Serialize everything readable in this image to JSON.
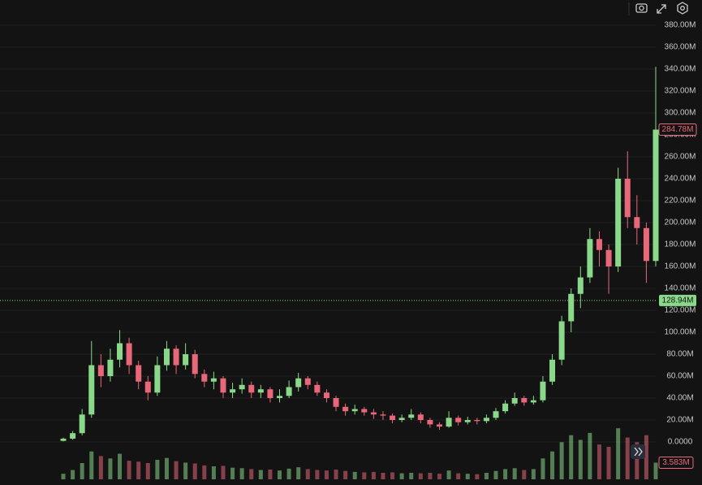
{
  "chart_data": {
    "type": "candlestick",
    "open": [
      1,
      3,
      8,
      25,
      70,
      60,
      75,
      90,
      70,
      55,
      45,
      70,
      85,
      70,
      80,
      62,
      55,
      58,
      45,
      48,
      52,
      45,
      48,
      40,
      42,
      50,
      58,
      52,
      45,
      40,
      32,
      28,
      30,
      27,
      25,
      24,
      20,
      22,
      25,
      20,
      16,
      14,
      22,
      18,
      20,
      19,
      22,
      28,
      35,
      40,
      36,
      38,
      55,
      75,
      110,
      135,
      150,
      185,
      175,
      160,
      240,
      205,
      195,
      165
    ],
    "high": [
      4,
      10,
      30,
      92,
      80,
      85,
      102,
      95,
      74,
      60,
      78,
      92,
      88,
      90,
      84,
      66,
      64,
      60,
      54,
      58,
      55,
      52,
      50,
      48,
      56,
      63,
      60,
      55,
      48,
      42,
      35,
      34,
      32,
      30,
      28,
      26,
      25,
      30,
      27,
      22,
      18,
      28,
      24,
      23,
      22,
      25,
      31,
      38,
      45,
      42,
      42,
      60,
      80,
      115,
      140,
      160,
      195,
      192,
      180,
      250,
      265,
      225,
      200,
      342
    ],
    "low": [
      0.5,
      2,
      6,
      22,
      50,
      55,
      68,
      62,
      48,
      38,
      42,
      65,
      62,
      66,
      58,
      50,
      48,
      40,
      40,
      44,
      40,
      40,
      36,
      36,
      40,
      46,
      48,
      42,
      36,
      28,
      24,
      25,
      24,
      21,
      20,
      17,
      18,
      20,
      17,
      13,
      11,
      13,
      15,
      16,
      16,
      17,
      20,
      26,
      33,
      33,
      34,
      36,
      52,
      70,
      100,
      122,
      145,
      160,
      135,
      155,
      195,
      180,
      145,
      160
    ],
    "close": [
      3,
      8,
      25,
      70,
      60,
      75,
      90,
      70,
      55,
      45,
      70,
      85,
      70,
      80,
      62,
      55,
      58,
      45,
      48,
      52,
      45,
      48,
      40,
      42,
      50,
      58,
      52,
      45,
      40,
      32,
      28,
      30,
      27,
      25,
      24,
      20,
      22,
      25,
      20,
      16,
      14,
      22,
      18,
      20,
      19,
      22,
      28,
      35,
      40,
      36,
      38,
      55,
      75,
      110,
      135,
      150,
      185,
      175,
      160,
      240,
      205,
      195,
      165,
      284.78
    ],
    "volume": [
      1.2,
      2,
      3.5,
      6,
      5,
      4.5,
      5.5,
      4,
      3.8,
      3.5,
      4.2,
      4.6,
      3.9,
      3.6,
      3.4,
      3,
      2.8,
      2.9,
      2.5,
      2.4,
      2.2,
      2,
      2.1,
      1.9,
      2.3,
      2.6,
      2.2,
      2,
      1.9,
      2.1,
      1.8,
      1.6,
      1.5,
      1.6,
      1.4,
      1.5,
      1.3,
      1.4,
      1.3,
      1.4,
      1.2,
      1.9,
      1.3,
      1.2,
      1.1,
      1.4,
      1.8,
      2.2,
      2.4,
      2,
      2.2,
      4.5,
      6,
      8,
      9.5,
      8.5,
      10,
      7.5,
      7,
      11,
      9,
      8,
      9.5,
      3.583
    ],
    "close_label": "284.78M",
    "volume_label": "3.583M",
    "volume_ylim": [
      0,
      14
    ],
    "up_color": "#8ad98a",
    "down_color": "#e8687a",
    "reference_line": {
      "value": 128.94,
      "label": "128.94M",
      "color": "#8ad98a"
    },
    "ylim": [
      0,
      380
    ],
    "yticks": [
      {
        "value": 0,
        "label": "0.0000"
      },
      {
        "value": 20,
        "label": "20.00M"
      },
      {
        "value": 40,
        "label": "40.00M"
      },
      {
        "value": 60,
        "label": "60.00M"
      },
      {
        "value": 80,
        "label": "80.00M"
      },
      {
        "value": 100,
        "label": "100.00M"
      },
      {
        "value": 120,
        "label": "120.00M"
      },
      {
        "value": 140,
        "label": "140.00M"
      },
      {
        "value": 160,
        "label": "160.00M"
      },
      {
        "value": 180,
        "label": "180.00M"
      },
      {
        "value": 200,
        "label": "200.00M"
      },
      {
        "value": 220,
        "label": "220.00M"
      },
      {
        "value": 240,
        "label": "240.00M"
      },
      {
        "value": 260,
        "label": "260.00M"
      },
      {
        "value": 280,
        "label": "280.00M"
      },
      {
        "value": 300,
        "label": "300.00M"
      },
      {
        "value": 320,
        "label": "320.00M"
      },
      {
        "value": 340,
        "label": "340.00M"
      },
      {
        "value": 360,
        "label": "360.00M"
      },
      {
        "value": 380,
        "label": "380.00M"
      }
    ],
    "grid": true
  }
}
